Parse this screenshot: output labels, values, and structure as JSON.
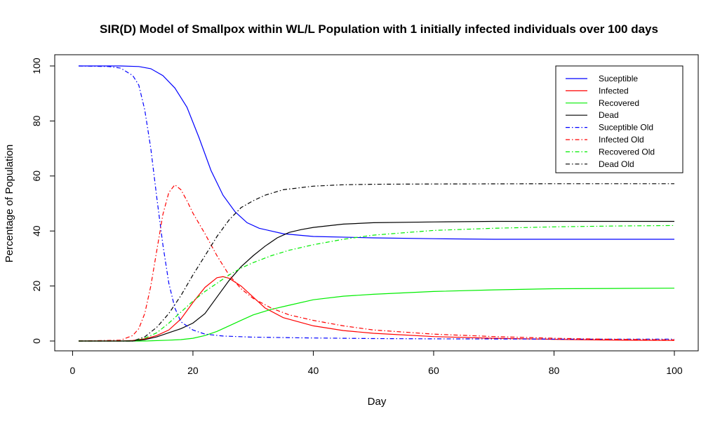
{
  "chart_data": {
    "type": "line",
    "title": "SIR(D) Model of Smallpox within WL/L Population with 1 initially infected individuals over 100 days",
    "xlabel": "Day",
    "ylabel": "Percentage of Population",
    "xlim": [
      1,
      100
    ],
    "ylim": [
      0,
      100
    ],
    "xticks": [
      0,
      20,
      40,
      60,
      80,
      100
    ],
    "yticks": [
      0,
      20,
      40,
      60,
      80,
      100
    ],
    "legend_position": "top-right",
    "grid": false,
    "series": [
      {
        "name": "Suceptible",
        "color": "#0000ff",
        "dash": "solid",
        "points": [
          [
            1,
            100
          ],
          [
            8,
            100
          ],
          [
            11,
            99.8
          ],
          [
            13,
            99
          ],
          [
            15,
            96.5
          ],
          [
            17,
            92
          ],
          [
            19,
            85
          ],
          [
            21,
            74
          ],
          [
            23,
            62
          ],
          [
            25,
            53
          ],
          [
            27,
            47
          ],
          [
            29,
            43
          ],
          [
            31,
            41
          ],
          [
            33,
            40
          ],
          [
            35,
            39
          ],
          [
            40,
            38
          ],
          [
            50,
            37.5
          ],
          [
            60,
            37.2
          ],
          [
            70,
            37
          ],
          [
            80,
            37
          ],
          [
            90,
            37
          ],
          [
            100,
            37
          ]
        ]
      },
      {
        "name": "Infected",
        "color": "#ff0000",
        "dash": "solid",
        "points": [
          [
            1,
            0
          ],
          [
            8,
            0
          ],
          [
            10,
            0.2
          ],
          [
            12,
            0.8
          ],
          [
            14,
            2
          ],
          [
            16,
            4
          ],
          [
            18,
            8
          ],
          [
            20,
            14
          ],
          [
            22,
            19.5
          ],
          [
            24,
            23
          ],
          [
            25,
            23.4
          ],
          [
            26,
            22.8
          ],
          [
            28,
            20
          ],
          [
            30,
            16
          ],
          [
            32,
            12
          ],
          [
            35,
            8.5
          ],
          [
            40,
            5.5
          ],
          [
            45,
            3.8
          ],
          [
            50,
            2.8
          ],
          [
            60,
            1.6
          ],
          [
            70,
            1
          ],
          [
            80,
            0.6
          ],
          [
            90,
            0.3
          ],
          [
            100,
            0.2
          ]
        ]
      },
      {
        "name": "Recovered",
        "color": "#00ee00",
        "dash": "solid",
        "points": [
          [
            1,
            0
          ],
          [
            12,
            0
          ],
          [
            16,
            0.3
          ],
          [
            18,
            0.5
          ],
          [
            20,
            1
          ],
          [
            22,
            2
          ],
          [
            24,
            3.5
          ],
          [
            26,
            5.5
          ],
          [
            28,
            7.5
          ],
          [
            30,
            9.5
          ],
          [
            33,
            11.5
          ],
          [
            36,
            13
          ],
          [
            40,
            15
          ],
          [
            45,
            16.3
          ],
          [
            50,
            17
          ],
          [
            60,
            18
          ],
          [
            70,
            18.6
          ],
          [
            80,
            19
          ],
          [
            90,
            19.1
          ],
          [
            100,
            19.2
          ]
        ]
      },
      {
        "name": "Dead",
        "color": "#000000",
        "dash": "solid",
        "points": [
          [
            1,
            0
          ],
          [
            10,
            0
          ],
          [
            12,
            0.5
          ],
          [
            14,
            1.5
          ],
          [
            16,
            3
          ],
          [
            18,
            4.5
          ],
          [
            20,
            6.5
          ],
          [
            22,
            10
          ],
          [
            24,
            16
          ],
          [
            26,
            22
          ],
          [
            28,
            27
          ],
          [
            30,
            31
          ],
          [
            32,
            34.5
          ],
          [
            34,
            37.5
          ],
          [
            36,
            39.5
          ],
          [
            38,
            40.5
          ],
          [
            40,
            41.3
          ],
          [
            45,
            42.5
          ],
          [
            50,
            43
          ],
          [
            60,
            43.3
          ],
          [
            70,
            43.5
          ],
          [
            80,
            43.5
          ],
          [
            90,
            43.5
          ],
          [
            100,
            43.5
          ]
        ]
      },
      {
        "name": "Suceptible Old",
        "color": "#0000ff",
        "dash": "dashdot",
        "points": [
          [
            1,
            100
          ],
          [
            6,
            99.8
          ],
          [
            8,
            99.2
          ],
          [
            10,
            96.5
          ],
          [
            11,
            93
          ],
          [
            12,
            84
          ],
          [
            13,
            70
          ],
          [
            14,
            52
          ],
          [
            15,
            35
          ],
          [
            16,
            21
          ],
          [
            17,
            12
          ],
          [
            18,
            7
          ],
          [
            20,
            4
          ],
          [
            22,
            2.5
          ],
          [
            25,
            1.8
          ],
          [
            30,
            1.4
          ],
          [
            40,
            1.1
          ],
          [
            50,
            0.9
          ],
          [
            60,
            0.8
          ],
          [
            80,
            0.7
          ],
          [
            100,
            0.7
          ]
        ]
      },
      {
        "name": "Infected Old",
        "color": "#ff0000",
        "dash": "dashdot",
        "points": [
          [
            1,
            0
          ],
          [
            8,
            0.3
          ],
          [
            10,
            2
          ],
          [
            11,
            4.5
          ],
          [
            12,
            10
          ],
          [
            13,
            20
          ],
          [
            14,
            33
          ],
          [
            15,
            46
          ],
          [
            16,
            54
          ],
          [
            17,
            56.8
          ],
          [
            18,
            55
          ],
          [
            19,
            51
          ],
          [
            20,
            46.5
          ],
          [
            22,
            39
          ],
          [
            24,
            31
          ],
          [
            26,
            24
          ],
          [
            28,
            19
          ],
          [
            30,
            15.5
          ],
          [
            33,
            12
          ],
          [
            36,
            9.5
          ],
          [
            40,
            7.5
          ],
          [
            45,
            5.5
          ],
          [
            50,
            4
          ],
          [
            60,
            2.5
          ],
          [
            70,
            1.6
          ],
          [
            80,
            1
          ],
          [
            90,
            0.6
          ],
          [
            100,
            0.4
          ]
        ]
      },
      {
        "name": "Recovered Old",
        "color": "#00ee00",
        "dash": "dashdot",
        "points": [
          [
            1,
            0
          ],
          [
            10,
            0
          ],
          [
            12,
            1
          ],
          [
            14,
            3
          ],
          [
            16,
            6.5
          ],
          [
            18,
            10.5
          ],
          [
            20,
            14.5
          ],
          [
            22,
            18
          ],
          [
            24,
            21
          ],
          [
            26,
            24
          ],
          [
            28,
            26.5
          ],
          [
            30,
            28.5
          ],
          [
            33,
            31
          ],
          [
            36,
            33
          ],
          [
            40,
            35
          ],
          [
            45,
            37
          ],
          [
            50,
            38.5
          ],
          [
            60,
            40.2
          ],
          [
            70,
            41
          ],
          [
            80,
            41.5
          ],
          [
            90,
            41.8
          ],
          [
            100,
            42
          ]
        ]
      },
      {
        "name": "Dead Old",
        "color": "#000000",
        "dash": "dashdot",
        "points": [
          [
            1,
            0
          ],
          [
            10,
            0
          ],
          [
            12,
            1.5
          ],
          [
            14,
            5
          ],
          [
            16,
            10
          ],
          [
            18,
            16.5
          ],
          [
            20,
            24
          ],
          [
            22,
            31
          ],
          [
            24,
            38
          ],
          [
            26,
            44
          ],
          [
            28,
            48.5
          ],
          [
            30,
            51
          ],
          [
            32,
            53
          ],
          [
            35,
            55
          ],
          [
            40,
            56.3
          ],
          [
            45,
            56.8
          ],
          [
            50,
            57
          ],
          [
            60,
            57.1
          ],
          [
            80,
            57.2
          ],
          [
            100,
            57.2
          ]
        ]
      }
    ]
  }
}
